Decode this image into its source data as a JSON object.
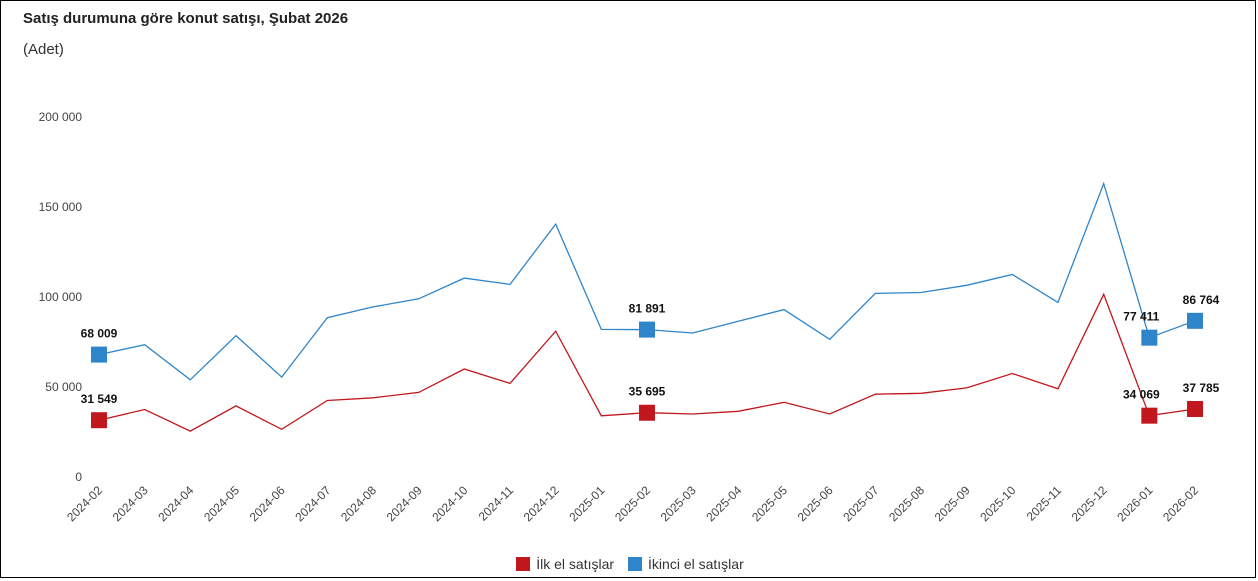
{
  "title": "Satış durumuna göre konut satışı, Şubat 2026",
  "unit_label": "(Adet)",
  "colors": {
    "first_hand": "#c0181d",
    "second_hand": "#2f85c9"
  },
  "chart_data": {
    "type": "line",
    "categories": [
      "2024-02",
      "2024-03",
      "2024-04",
      "2024-05",
      "2024-06",
      "2024-07",
      "2024-08",
      "2024-09",
      "2024-10",
      "2024-11",
      "2024-12",
      "2025-01",
      "2025-02",
      "2025-03",
      "2025-04",
      "2025-05",
      "2025-06",
      "2025-07",
      "2025-08",
      "2025-09",
      "2025-10",
      "2025-11",
      "2025-12",
      "2026-01",
      "2026-02"
    ],
    "ylim": [
      0,
      200000
    ],
    "yticks": [
      0,
      50000,
      100000,
      150000,
      200000
    ],
    "ytick_labels": [
      "0",
      "50 000",
      "100 000",
      "150 000",
      "200 000"
    ],
    "series": [
      {
        "name": "İlk el satışlar",
        "color": "#c0181d",
        "values": [
          31549,
          37500,
          25500,
          39500,
          26500,
          42500,
          44000,
          47000,
          60000,
          52000,
          81000,
          34000,
          35695,
          35000,
          36500,
          41500,
          35000,
          46000,
          46500,
          49500,
          57500,
          49000,
          101500,
          34069,
          37785
        ],
        "labels": [
          {
            "index": 0,
            "text": "31 549"
          },
          {
            "index": 12,
            "text": "35 695"
          },
          {
            "index": 23,
            "text": "34 069"
          },
          {
            "index": 24,
            "text": "37 785"
          }
        ]
      },
      {
        "name": "İkinci el satışlar",
        "color": "#2f85c9",
        "values": [
          68009,
          73500,
          54000,
          78500,
          55500,
          88500,
          94500,
          99000,
          110500,
          107000,
          140500,
          82000,
          81891,
          80000,
          86500,
          93000,
          76500,
          102000,
          102500,
          106500,
          112500,
          97000,
          163000,
          77411,
          86764
        ],
        "labels": [
          {
            "index": 0,
            "text": "68 009"
          },
          {
            "index": 12,
            "text": "81 891"
          },
          {
            "index": 23,
            "text": "77 411"
          },
          {
            "index": 24,
            "text": "86 764"
          }
        ]
      }
    ],
    "marker_indices": [
      0,
      12,
      23,
      24
    ],
    "legend_position": "bottom"
  }
}
